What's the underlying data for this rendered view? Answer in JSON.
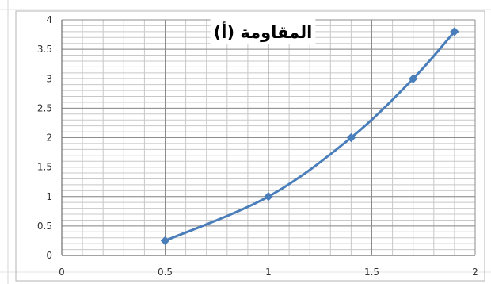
{
  "chart_data": {
    "type": "line",
    "title": "المقاومة (أ)",
    "xlabel": "",
    "ylabel": "",
    "xlim": [
      0,
      2
    ],
    "ylim": [
      0,
      4
    ],
    "x_major_step": 0.5,
    "y_major_step": 0.5,
    "x_minor_step": 0.1,
    "y_minor_step": 0.1,
    "x_tick_labels": [
      "0",
      "0.5",
      "1",
      "1.5",
      "2"
    ],
    "y_tick_labels": [
      "0",
      "0.5",
      "1",
      "1.5",
      "2",
      "2.5",
      "3",
      "3.5",
      "4"
    ],
    "grid": true,
    "legend": "none",
    "series": [
      {
        "x": [
          0.5,
          1.0,
          1.4,
          1.7,
          1.9
        ],
        "y": [
          0.25,
          1.0,
          2.0,
          3.0,
          3.8
        ],
        "smooth": true,
        "marker": "diamond",
        "color": "#4a7ebb"
      }
    ]
  },
  "colors": {
    "series": "#4a7ebb",
    "major_grid": "#8c8c8c",
    "minor_grid": "#c8c8c8",
    "axis": "#6e6e6e",
    "plot_border": "#b4b4b4"
  }
}
